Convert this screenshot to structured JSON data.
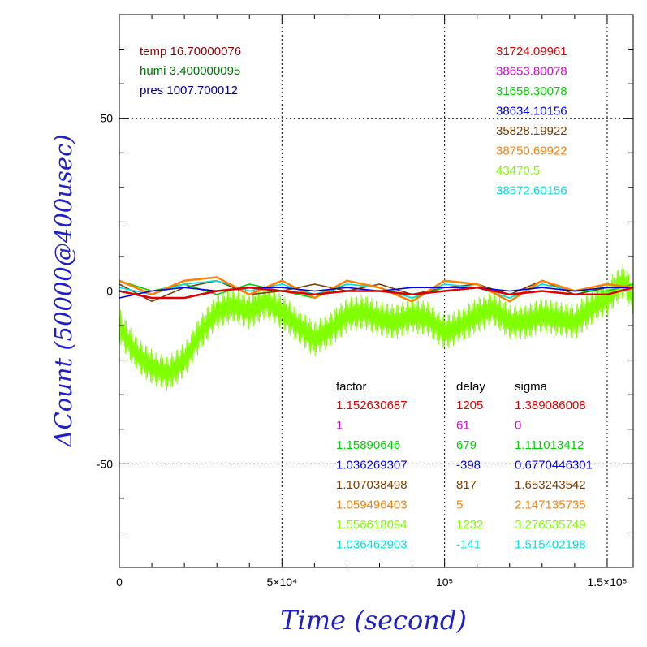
{
  "chart_data": {
    "type": "line",
    "xlabel": "Time (second)",
    "ylabel": "ΔCount (50000@400usec)",
    "xlim": [
      0,
      158000
    ],
    "ylim": [
      -80,
      80
    ],
    "x_tick_labels": [
      {
        "value": 0,
        "label": "0"
      },
      {
        "value": 50000,
        "label": "5×10⁴"
      },
      {
        "value": 100000,
        "label": "10⁵"
      },
      {
        "value": 150000,
        "label": "1.5×10⁵"
      }
    ],
    "y_tick_labels": [
      {
        "value": 50,
        "label": "50"
      },
      {
        "value": 0,
        "label": "0"
      },
      {
        "value": -50,
        "label": "-50"
      }
    ],
    "grid": true,
    "environment": [
      {
        "text": "temp 16.70000076",
        "color": "#8b0000"
      },
      {
        "text": "humi 3.400000095",
        "color": "#007000"
      },
      {
        "text": "pres 1007.700012",
        "color": "#000080"
      }
    ],
    "series": [
      {
        "name": "31724.09961",
        "color": "#e00000",
        "factor": "1.152630687",
        "delay": "1205",
        "sigma": "1.389086008",
        "x": [
          0,
          10000,
          20000,
          30000,
          40000,
          50000,
          60000,
          70000,
          80000,
          90000,
          100000,
          110000,
          120000,
          130000,
          140000,
          150000,
          158000
        ],
        "y": [
          0,
          -2,
          -2,
          0,
          1,
          0,
          -1,
          0,
          0,
          -1,
          0,
          1,
          -1,
          0,
          -1,
          -1,
          1
        ]
      },
      {
        "name": "38653.80078",
        "color": "#e000e0",
        "factor": "1",
        "delay": "61",
        "sigma": "0",
        "x": [],
        "y": []
      },
      {
        "name": "31658.30078",
        "color": "#00d000",
        "factor": "1.15890646",
        "delay": "679",
        "sigma": "1.111013412",
        "x": [
          0,
          10000,
          20000,
          30000,
          40000,
          50000,
          60000,
          70000,
          80000,
          90000,
          100000,
          110000,
          120000,
          130000,
          140000,
          150000,
          158000
        ],
        "y": [
          3,
          0,
          2,
          -1,
          2,
          0,
          -2,
          2,
          1,
          -2,
          1,
          1,
          -2,
          2,
          0,
          0,
          2
        ]
      },
      {
        "name": "38634.10156",
        "color": "#0000e0",
        "factor": "1.036269307",
        "delay": "-398",
        "sigma": "0.6770446301",
        "x": [
          0,
          10000,
          20000,
          30000,
          40000,
          50000,
          60000,
          70000,
          80000,
          90000,
          100000,
          110000,
          120000,
          130000,
          140000,
          150000,
          158000
        ],
        "y": [
          -2,
          0,
          1,
          0,
          1,
          1,
          0,
          1,
          0,
          1,
          1,
          1,
          0,
          1,
          0,
          1,
          1
        ]
      },
      {
        "name": "35828.19922",
        "color": "#7a3c00",
        "factor": "1.107038498",
        "delay": "817",
        "sigma": "1.653243542",
        "x": [
          0,
          10000,
          20000,
          30000,
          40000,
          50000,
          60000,
          70000,
          80000,
          90000,
          100000,
          110000,
          120000,
          130000,
          140000,
          150000,
          158000
        ],
        "y": [
          2,
          -3,
          1,
          3,
          -1,
          0,
          2,
          0,
          2,
          -1,
          1,
          2,
          -1,
          3,
          -1,
          1,
          1
        ]
      },
      {
        "name": "38750.69922",
        "color": "#ff8000",
        "factor": "1.059496403",
        "delay": "5",
        "sigma": "2.147135735",
        "x": [
          0,
          10000,
          20000,
          30000,
          40000,
          50000,
          60000,
          70000,
          80000,
          90000,
          100000,
          110000,
          120000,
          130000,
          140000,
          150000,
          158000
        ],
        "y": [
          3,
          -1,
          3,
          4,
          -1,
          3,
          -2,
          3,
          1,
          -3,
          3,
          2,
          -3,
          3,
          0,
          2,
          1
        ]
      },
      {
        "name": "43470.5",
        "color": "#80ff00",
        "factor": "1.556618094",
        "delay": "1232",
        "sigma": "3.276535749",
        "x": [
          0,
          5000,
          10000,
          15000,
          20000,
          25000,
          30000,
          35000,
          40000,
          45000,
          50000,
          55000,
          60000,
          65000,
          70000,
          75000,
          80000,
          85000,
          90000,
          95000,
          100000,
          105000,
          110000,
          115000,
          120000,
          125000,
          130000,
          135000,
          140000,
          145000,
          150000,
          155000,
          158000
        ],
        "y": [
          -10,
          -18,
          -22,
          -24,
          -20,
          -12,
          -6,
          -4,
          -6,
          -3,
          -6,
          -10,
          -14,
          -11,
          -7,
          -6,
          -8,
          -9,
          -7,
          -8,
          -12,
          -10,
          -7,
          -5,
          -9,
          -9,
          -7,
          -8,
          -9,
          -5,
          -2,
          3,
          -2
        ]
      },
      {
        "name": "38572.60156",
        "color": "#00e0e0",
        "factor": "1.036462903",
        "delay": "-141",
        "sigma": "1.515402198",
        "x": [
          0,
          10000,
          20000,
          30000,
          40000,
          50000,
          60000,
          70000,
          80000,
          90000,
          100000,
          110000,
          120000,
          130000,
          140000,
          150000,
          158000
        ],
        "y": [
          1,
          -1,
          2,
          3,
          0,
          2,
          -1,
          2,
          1,
          -2,
          2,
          1,
          -2,
          2,
          0,
          1,
          1
        ]
      }
    ],
    "table_headers": {
      "factor": "factor",
      "delay": "delay",
      "sigma": "sigma"
    }
  }
}
